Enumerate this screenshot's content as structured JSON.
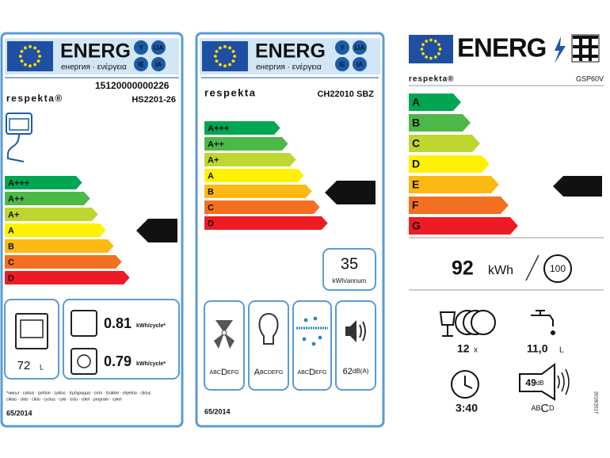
{
  "labels": [
    {
      "header": {
        "title": "ENERG",
        "languages": "енергия · ενέργεια",
        "badges": [
          "Y",
          "IJA",
          "IE",
          "IA"
        ]
      },
      "brand": "respekta®",
      "registration": "15120000000226",
      "model": "HS2201-26",
      "classes": [
        "A+++",
        "A++",
        "A+",
        "A",
        "B",
        "C",
        "D"
      ],
      "rating": "A",
      "volume": {
        "value": "72",
        "unit": "L"
      },
      "consumption": [
        {
          "value": "0.81",
          "unit": "kWh/cycle*"
        },
        {
          "value": "0.79",
          "unit": "kWh/cycle*"
        }
      ],
      "footnote": [
        "*чикъл · cyklus · portion · zyklus · πρόγραμμα · ciclo · tsükkel · ohjelma · ciklus",
        "ciklas · cikls · ċiklu · cyclus · cykl · ciclu · cikel · program · cykel"
      ],
      "regulation": "65/2014"
    },
    {
      "header": {
        "title": "ENERG",
        "languages": "енергия · ενέργεια",
        "badges": [
          "Y",
          "IJA",
          "IE",
          "IA"
        ]
      },
      "brand": "respekta",
      "model": "CH22010 SBZ",
      "classes": [
        "A+++",
        "A++",
        "A+",
        "A",
        "B",
        "C",
        "D"
      ],
      "rating": "B",
      "annual": {
        "value": "35",
        "unit": "kWh/annum"
      },
      "scales": [
        {
          "before": "ABC",
          "mark": "D",
          "after": "EFG"
        },
        {
          "before": "",
          "mark": "A",
          "after": "BCDEFG"
        },
        {
          "before": "ABC",
          "mark": "D",
          "after": "EFG"
        }
      ],
      "noise": {
        "value": "62",
        "unit": "dB(A)"
      },
      "regulation": "65/2014"
    },
    {
      "header": {
        "title": "ENERG"
      },
      "brand": "respekta®",
      "model": "GSP60V",
      "classes": [
        "A",
        "B",
        "C",
        "D",
        "E",
        "F",
        "G"
      ],
      "rating": "E",
      "energy": {
        "value": "92",
        "unit": "kWh"
      },
      "cycles": "100",
      "capacity": {
        "value": "12",
        "unit": "x"
      },
      "water": {
        "value": "11,0",
        "unit": "L"
      },
      "duration": "3:40",
      "noise": {
        "value": "49",
        "unit": "dB",
        "before": "AB",
        "mark": "C",
        "after": "D"
      },
      "regulation": "2019/2017"
    }
  ]
}
